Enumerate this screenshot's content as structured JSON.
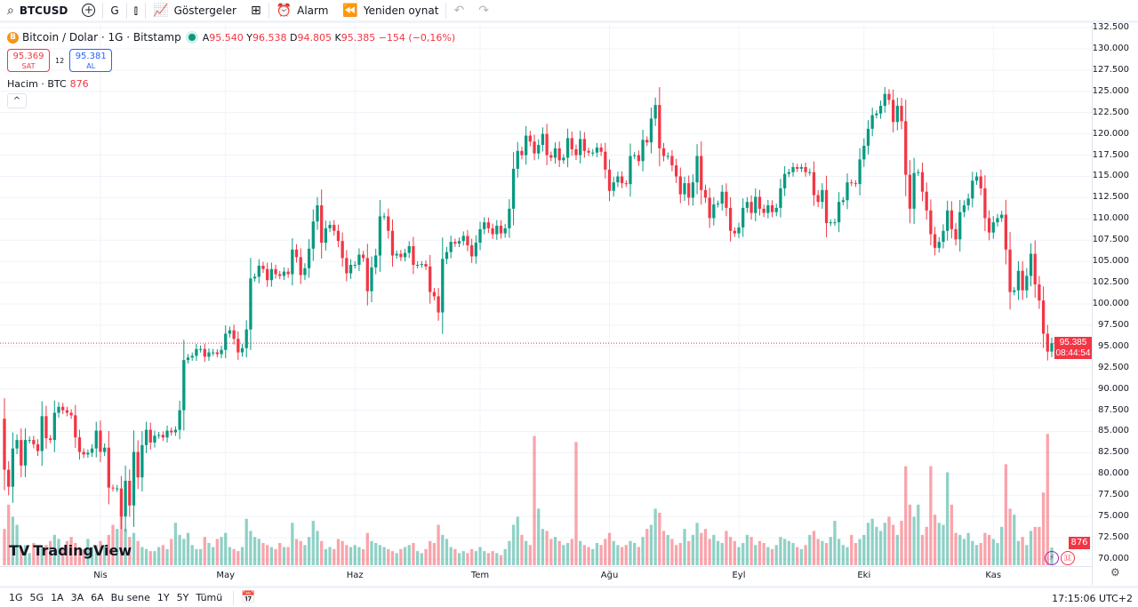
{
  "toolbar": {
    "symbol": "BTCUSD",
    "interval": "G",
    "indicators_label": "Göstergeler",
    "alarm_label": "Alarm",
    "replay_label": "Yeniden oynat",
    "icons": [
      "search-icon",
      "add-symbol-icon",
      "candles-icon",
      "indicators-icon",
      "layouts-icon",
      "alarm-icon",
      "replay-icon",
      "undo-icon",
      "redo-icon"
    ]
  },
  "legend": {
    "title": "Bitcoin / Dolar · 1G · Bitstamp",
    "open_prefix": "A",
    "open": "95.540",
    "high_prefix": "Y",
    "high": "96.538",
    "low_prefix": "D",
    "low": "94.805",
    "close_prefix": "K",
    "close": "95.385",
    "change": "−154 (−0,16%)"
  },
  "trade": {
    "sell_price": "95.369",
    "sell_label": "SAT",
    "spread": "12",
    "buy_price": "95.381",
    "buy_label": "AL"
  },
  "volume_legend": {
    "label": "Hacim · BTC",
    "value": "876"
  },
  "price_axis": {
    "labels": [
      "132.500",
      "130.000",
      "127.500",
      "125.000",
      "122.500",
      "120.000",
      "117.500",
      "115.000",
      "112.500",
      "110.000",
      "107.500",
      "105.000",
      "102.500",
      "100.000",
      "97.500",
      "95.000",
      "92.500",
      "90.000",
      "87.500",
      "85.000",
      "82.500",
      "80.000",
      "77.500",
      "75.000",
      "72.500",
      "70.000"
    ],
    "current_price": "95.385",
    "countdown": "08:44:54",
    "volume_tag": "876"
  },
  "colors": {
    "up": "#089981",
    "down": "#f23645",
    "accent": "#2962ff"
  },
  "bottom": {
    "ranges": [
      "1G",
      "5G",
      "1A",
      "3A",
      "6A",
      "Bu sene",
      "1Y",
      "5Y",
      "Tümü"
    ],
    "clock": "17:15:06 UTC+2"
  },
  "logo_text": "TradingView",
  "chart_data": {
    "type": "candlestick",
    "title": "Bitcoin / Dolar · 1G · Bitstamp",
    "ylim": [
      70000,
      132500
    ],
    "grid": true,
    "x_labels": [
      {
        "label": "Nis",
        "index": 23
      },
      {
        "label": "May",
        "index": 53
      },
      {
        "label": "Haz",
        "index": 84
      },
      {
        "label": "Tem",
        "index": 114
      },
      {
        "label": "Ağu",
        "index": 145
      },
      {
        "label": "Eyl",
        "index": 176
      },
      {
        "label": "Eki",
        "index": 206
      },
      {
        "label": "Kas",
        "index": 237
      }
    ],
    "first_open": 86500,
    "close": [
      80500,
      78500,
      83000,
      84000,
      81000,
      84000,
      84000,
      83500,
      82700,
      86800,
      84200,
      84000,
      87200,
      87900,
      87500,
      87200,
      86900,
      84300,
      82600,
      82300,
      82500,
      83000,
      85100,
      82600,
      83100,
      78400,
      78300,
      78300,
      75000,
      79200,
      76300,
      82600,
      79600,
      83400,
      85200,
      83700,
      84500,
      84600,
      84300,
      85100,
      84900,
      85200,
      87500,
      93400,
      93700,
      93900,
      94700,
      94700,
      93800,
      94300,
      94300,
      94100,
      94600,
      96500,
      96900,
      95900,
      94300,
      94800,
      97000,
      103000,
      103200,
      104500,
      104100,
      102800,
      104100,
      103500,
      103300,
      103800,
      103500,
      106400,
      105500,
      103400,
      104200,
      106500,
      109700,
      111600,
      107200,
      108900,
      109300,
      108600,
      107400,
      105400,
      103600,
      104600,
      104600,
      105800,
      105400,
      101500,
      104300,
      105700,
      110300,
      110300,
      108600,
      105700,
      105900,
      105500,
      106000,
      106800,
      104600,
      104600,
      104700,
      104400,
      101400,
      100900,
      99000,
      105300,
      106100,
      107300,
      107100,
      107400,
      108000,
      106900,
      105600,
      107200,
      108800,
      109600,
      108900,
      108200,
      109200,
      108300,
      108900,
      111200,
      115900,
      118000,
      117500,
      119800,
      119100,
      117700,
      118700,
      120000,
      117500,
      117200,
      118300,
      116900,
      117200,
      119500,
      118200,
      117500,
      119400,
      118000,
      117800,
      117800,
      118400,
      117900,
      115800,
      113300,
      114300,
      115000,
      114200,
      114100,
      117400,
      117500,
      116800,
      119300,
      119000,
      121800,
      123400,
      118300,
      117400,
      117400,
      116300,
      115000,
      112900,
      114200,
      112500,
      114300,
      117400,
      113400,
      112500,
      110100,
      111700,
      111800,
      113200,
      111300,
      108600,
      108300,
      109000,
      111300,
      112000,
      110700,
      112600,
      111200,
      110700,
      111600,
      110800,
      111300,
      113600,
      115300,
      115500,
      116100,
      115900,
      116100,
      115500,
      115500,
      112800,
      112000,
      113400,
      109500,
      109600,
      109600,
      112000,
      112200,
      114300,
      114200,
      114100,
      117000,
      118600,
      120600,
      122200,
      122400,
      123300,
      124700,
      124000,
      121400,
      123300,
      121500,
      115200,
      111200,
      115400,
      115500,
      113200,
      111000,
      108200,
      106600,
      107300,
      108600,
      111000,
      108800,
      107600,
      110800,
      111600,
      112400,
      114500,
      115000,
      113600,
      110100,
      108400,
      109600,
      110100,
      110500,
      106400,
      101400,
      101600,
      103900,
      101600,
      103300,
      105900,
      102300,
      100400,
      96500,
      94400,
      95385
    ],
    "volume": [
      1800,
      3000,
      2400,
      2000,
      900,
      1000,
      600,
      1100,
      1000,
      900,
      1000,
      1200,
      1500,
      1300,
      900,
      1200,
      1400,
      1100,
      900,
      800,
      1300,
      900,
      1000,
      1200,
      1000,
      1500,
      2000,
      1800,
      2800,
      1800,
      1400,
      1600,
      1200,
      900,
      800,
      700,
      700,
      900,
      1000,
      800,
      1300,
      2100,
      1500,
      1300,
      1600,
      1000,
      800,
      800,
      1400,
      1100,
      900,
      1300,
      1400,
      1600,
      900,
      800,
      700,
      900,
      2300,
      1700,
      1400,
      1300,
      1100,
      1000,
      900,
      800,
      1100,
      900,
      900,
      2100,
      1300,
      1200,
      1000,
      1400,
      2200,
      1700,
      1200,
      800,
      900,
      800,
      1300,
      1200,
      1000,
      900,
      1000,
      900,
      800,
      1600,
      1200,
      1100,
      1000,
      900,
      800,
      700,
      600,
      800,
      900,
      1000,
      1100,
      700,
      600,
      800,
      1200,
      1100,
      2000,
      1500,
      1300,
      900,
      800,
      600,
      700,
      600,
      800,
      700,
      900,
      700,
      600,
      700,
      600,
      500,
      800,
      1200,
      2000,
      2400,
      1500,
      1200,
      1000,
      6400,
      2800,
      1800,
      1700,
      1300,
      1400,
      1200,
      1000,
      1100,
      1300,
      6100,
      1200,
      1000,
      900,
      800,
      1100,
      1000,
      1300,
      1600,
      1200,
      1000,
      900,
      1000,
      1200,
      1100,
      900,
      1400,
      1800,
      2000,
      2800,
      2600,
      1700,
      1500,
      1300,
      1000,
      1100,
      1800,
      1200,
      1500,
      2100,
      1600,
      1800,
      1300,
      1500,
      1200,
      1100,
      1700,
      1400,
      1200,
      900,
      1100,
      1500,
      1400,
      1000,
      1200,
      1100,
      900,
      800,
      1000,
      1400,
      1300,
      1200,
      1100,
      900,
      800,
      1000,
      1500,
      1700,
      1300,
      1200,
      1100,
      1400,
      2200,
      1300,
      1000,
      900,
      1500,
      1100,
      1300,
      1500,
      2100,
      2300,
      1900,
      1700,
      2100,
      2400,
      2000,
      1500,
      2200,
      4900,
      3000,
      2400,
      3000,
      1500,
      1900,
      4900,
      2500,
      2100,
      2000,
      4600,
      3000,
      1600,
      1500,
      1300,
      1600,
      1200,
      1000,
      1100,
      1600,
      1500,
      1300,
      1100,
      1900,
      5000,
      2800,
      2500,
      1200,
      1400,
      1000,
      1700,
      1900,
      1900,
      3600,
      6500,
      876
    ]
  }
}
